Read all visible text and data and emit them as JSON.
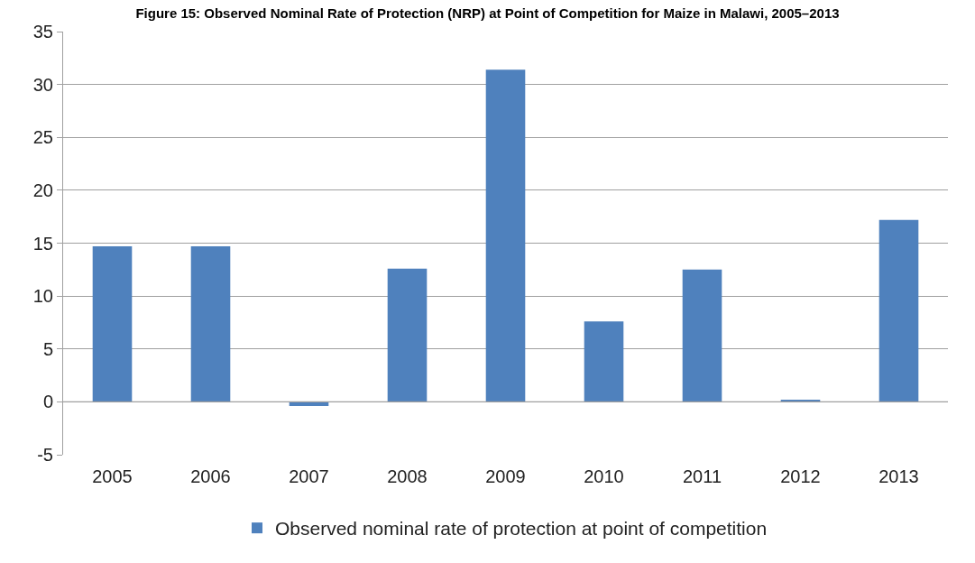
{
  "chart_data": {
    "type": "bar",
    "title": "Figure 15: Observed Nominal Rate of Protection (NRP) at Point of Competition for Maize in Malawi, 2005–2013",
    "categories": [
      "2005",
      "2006",
      "2007",
      "2008",
      "2009",
      "2010",
      "2011",
      "2012",
      "2013"
    ],
    "series": [
      {
        "name": "Observed nominal rate of protection at point of competition",
        "color": "#4f81bd",
        "values": [
          14.7,
          14.7,
          -0.4,
          12.6,
          31.4,
          7.6,
          12.5,
          0.2,
          17.2
        ]
      }
    ],
    "ylim": [
      -5,
      35
    ],
    "yticks": [
      -5,
      0,
      5,
      10,
      15,
      20,
      25,
      30,
      35
    ],
    "grid": "y",
    "legend": "bottom"
  }
}
